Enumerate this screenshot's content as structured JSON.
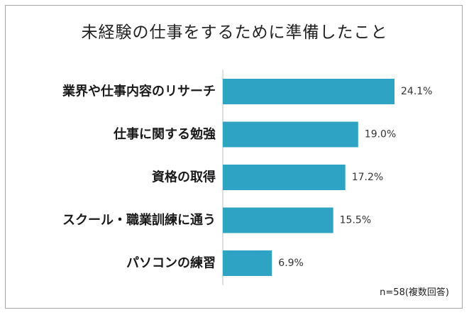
{
  "chart_data": {
    "type": "bar",
    "orientation": "horizontal",
    "title": "未経験の仕事をするために準備したこと",
    "categories": [
      "業界や仕事内容のリサーチ",
      "仕事に関する勉強",
      "資格の取得",
      "スクール・職業訓練に通う",
      "パソコンの練習"
    ],
    "values": [
      24.1,
      19.0,
      17.2,
      15.5,
      6.9
    ],
    "value_labels": [
      "24.1%",
      "19.0%",
      "17.2%",
      "15.5%",
      "6.9%"
    ],
    "unit": "%",
    "bar_color": "#2fa3c4",
    "note": "n=58(複数回答)",
    "grid": false,
    "legend": "none"
  }
}
